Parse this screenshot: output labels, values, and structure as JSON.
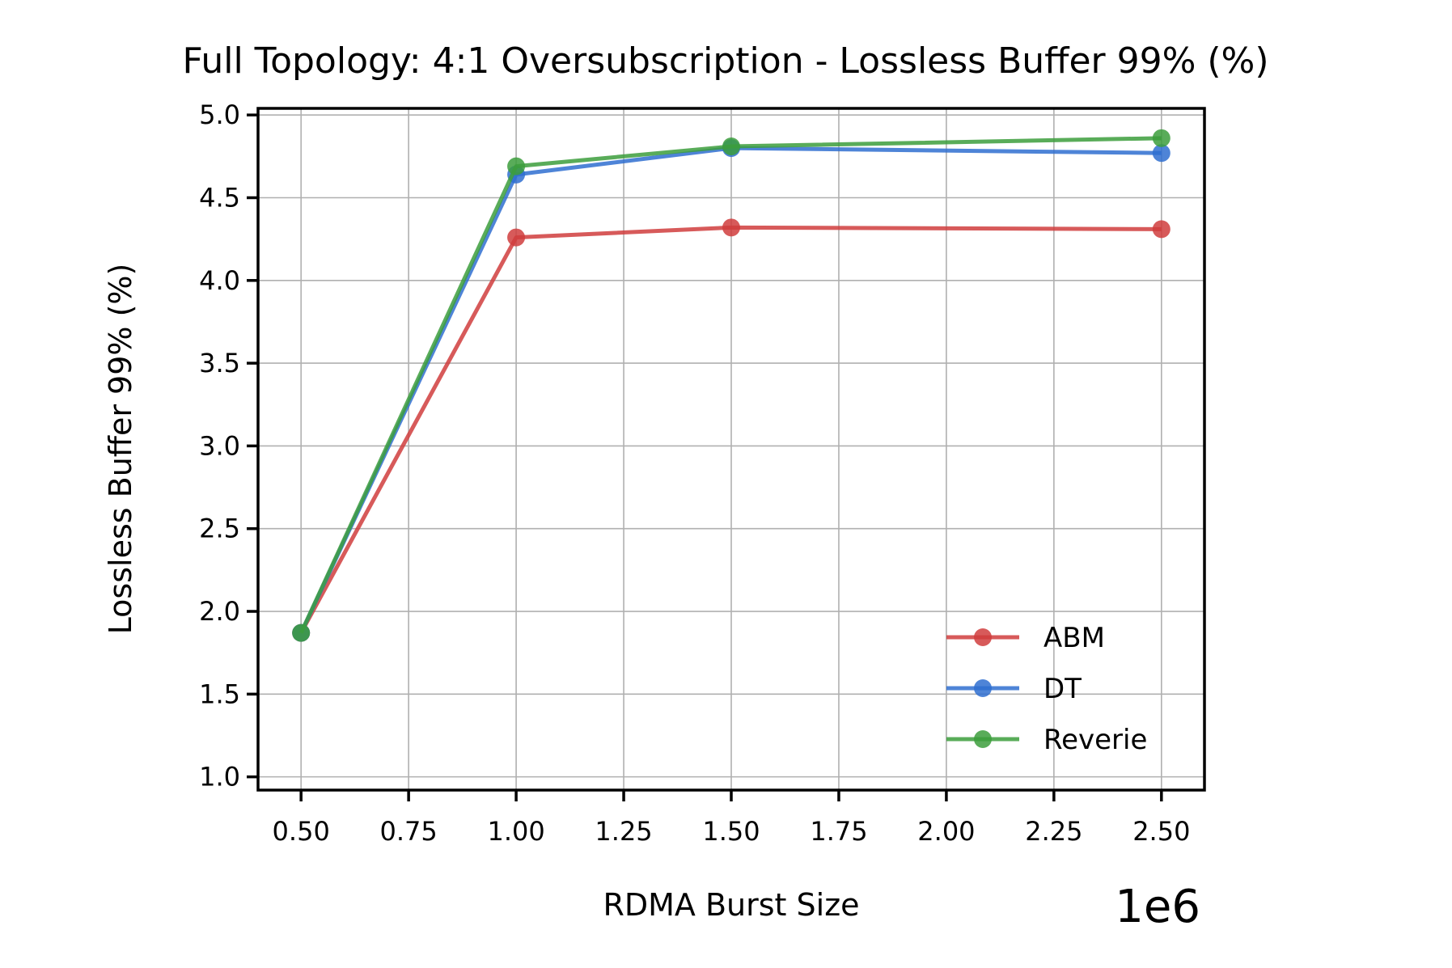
{
  "chart_data": {
    "type": "line",
    "title": "Full Topology: 4:1 Oversubscription - Lossless Buffer 99% (%)",
    "xlabel": "RDMA Burst Size",
    "ylabel": "Lossless Buffer 99% (%)",
    "x_offset_label": "1e6",
    "x": [
      500000,
      1000000,
      1500000,
      2500000
    ],
    "xlim": [
      400000,
      2600000
    ],
    "ylim": [
      0.92,
      5.04
    ],
    "x_ticks": [
      500000,
      750000,
      1000000,
      1250000,
      1500000,
      1750000,
      2000000,
      2250000,
      2500000
    ],
    "x_tick_labels": [
      "0.50",
      "0.75",
      "1.00",
      "1.25",
      "1.50",
      "1.75",
      "2.00",
      "2.25",
      "2.50"
    ],
    "y_ticks": [
      1.0,
      1.5,
      2.0,
      2.5,
      3.0,
      3.5,
      4.0,
      4.5,
      5.0
    ],
    "y_tick_labels": [
      "1.0",
      "1.5",
      "2.0",
      "2.5",
      "3.0",
      "3.5",
      "4.0",
      "4.5",
      "5.0"
    ],
    "grid": true,
    "legend_position": "lower-right",
    "series": [
      {
        "name": "ABM",
        "color": "#d03d3d",
        "values": [
          1.87,
          4.26,
          4.32,
          4.31
        ]
      },
      {
        "name": "DT",
        "color": "#2f6fd0",
        "values": [
          1.87,
          4.64,
          4.8,
          4.77
        ]
      },
      {
        "name": "Reverie",
        "color": "#3c9e3c",
        "values": [
          1.87,
          4.69,
          4.81,
          4.86
        ]
      }
    ]
  }
}
